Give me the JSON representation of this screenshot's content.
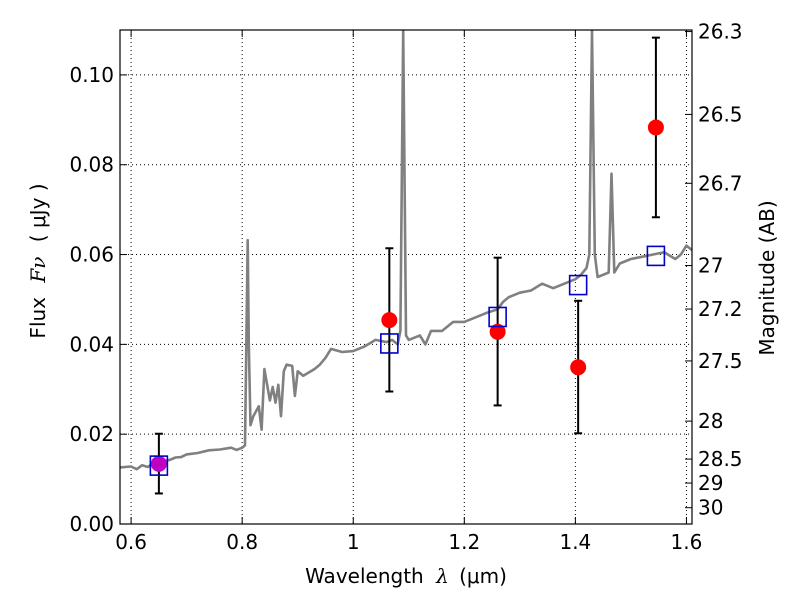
{
  "chart_data": {
    "type": "scatter",
    "xlabel": "Wavelength",
    "xlabel_symbol": "λ",
    "xlabel_unit": "(μm)",
    "ylabel": "Flux",
    "ylabel_symbol": "Fν",
    "ylabel_unit": "( μJy )",
    "y2label": "Magnitude (AB)",
    "xlim": [
      0.58,
      1.61
    ],
    "ylim": [
      0.0,
      0.11
    ],
    "grid": true,
    "x_ticks": [
      0.6,
      0.8,
      1.0,
      1.2,
      1.4,
      1.6
    ],
    "x_tick_labels": [
      "0.6",
      "0.8",
      "1",
      "1.2",
      "1.4",
      "1.6"
    ],
    "y_ticks": [
      0.0,
      0.02,
      0.04,
      0.06,
      0.08,
      0.1
    ],
    "y_tick_labels": [
      "0.00",
      "0.02",
      "0.04",
      "0.06",
      "0.08",
      "0.10"
    ],
    "y2_ticks": [
      "26.3",
      "26.5",
      "26.7",
      "27",
      "27.2",
      "27.5",
      "28",
      "28.5",
      "29",
      "30"
    ],
    "colors": {
      "model": "#808080",
      "observed": "#ff0000",
      "observed_first": "#c000c0",
      "model_photometry": "#0000cc",
      "errorbar": "#000000",
      "grid": "#000000"
    },
    "series": [
      {
        "kind": "model_spectrum",
        "x": [
          0.58,
          0.6,
          0.61,
          0.62,
          0.63,
          0.64,
          0.65,
          0.66,
          0.67,
          0.68,
          0.69,
          0.7,
          0.72,
          0.74,
          0.76,
          0.78,
          0.79,
          0.8,
          0.805,
          0.81,
          0.812,
          0.815,
          0.82,
          0.83,
          0.835,
          0.84,
          0.85,
          0.855,
          0.86,
          0.865,
          0.87,
          0.875,
          0.88,
          0.89,
          0.895,
          0.9,
          0.91,
          0.93,
          0.94,
          0.95,
          0.96,
          0.98,
          1.0,
          1.02,
          1.04,
          1.06,
          1.07,
          1.08,
          1.085,
          1.09,
          1.095,
          1.1,
          1.12,
          1.13,
          1.14,
          1.16,
          1.18,
          1.2,
          1.22,
          1.24,
          1.26,
          1.27,
          1.28,
          1.3,
          1.32,
          1.34,
          1.36,
          1.38,
          1.4,
          1.41,
          1.42,
          1.425,
          1.43,
          1.435,
          1.44,
          1.45,
          1.46,
          1.465,
          1.47,
          1.48,
          1.5,
          1.52,
          1.54,
          1.56,
          1.58,
          1.59,
          1.6,
          1.61
        ],
        "y": [
          0.0126,
          0.0128,
          0.0122,
          0.0131,
          0.0127,
          0.0135,
          0.0134,
          0.014,
          0.0143,
          0.0148,
          0.0149,
          0.0155,
          0.0158,
          0.0164,
          0.0166,
          0.017,
          0.0165,
          0.017,
          0.0175,
          0.0632,
          0.04,
          0.022,
          0.024,
          0.0262,
          0.021,
          0.0345,
          0.0275,
          0.0305,
          0.027,
          0.031,
          0.024,
          0.034,
          0.0355,
          0.0352,
          0.0285,
          0.034,
          0.033,
          0.0345,
          0.0355,
          0.037,
          0.039,
          0.0383,
          0.0385,
          0.0395,
          0.041,
          0.0405,
          0.041,
          0.04,
          0.043,
          0.11,
          0.042,
          0.041,
          0.042,
          0.04,
          0.043,
          0.043,
          0.045,
          0.045,
          0.046,
          0.047,
          0.0478,
          0.0495,
          0.0505,
          0.0515,
          0.052,
          0.0535,
          0.0525,
          0.0535,
          0.0545,
          0.0555,
          0.057,
          0.06,
          0.11,
          0.06,
          0.055,
          0.0555,
          0.056,
          0.078,
          0.056,
          0.058,
          0.059,
          0.0595,
          0.06,
          0.0605,
          0.059,
          0.06,
          0.062,
          0.061
        ]
      },
      {
        "kind": "observed_photometry",
        "x": [
          0.65,
          1.065,
          1.26,
          1.405,
          1.545
        ],
        "y": [
          0.0134,
          0.0454,
          0.0428,
          0.0349,
          0.0883
        ],
        "err_low": [
          0.0066,
          0.0159,
          0.0164,
          0.0147,
          0.02
        ],
        "err_high": [
          0.0067,
          0.016,
          0.0165,
          0.0148,
          0.02
        ]
      },
      {
        "kind": "model_photometry",
        "x": [
          0.65,
          1.065,
          1.26,
          1.405,
          1.545
        ],
        "y": [
          0.013,
          0.0402,
          0.0461,
          0.0532,
          0.0597
        ]
      }
    ]
  }
}
